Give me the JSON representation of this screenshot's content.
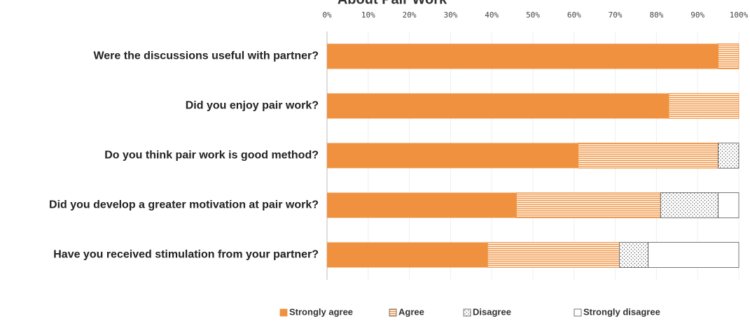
{
  "chart_data": {
    "type": "stacked-bar-horizontal",
    "title": "About Pair Work",
    "categories": [
      "Were the discussions useful with partner?",
      "Did you enjoy pair work?",
      "Do you think pair work is good method?",
      "Did you develop a greater motivation at pair work?",
      "Have you received stimulation from your partner?"
    ],
    "series": [
      {
        "name": "Strongly agree",
        "color": "#f0913f",
        "pattern": "solid",
        "values": [
          95,
          83,
          61,
          46,
          39
        ]
      },
      {
        "name": "Agree",
        "color": "#f0913f",
        "pattern": "horizontal-lines",
        "values": [
          5,
          17,
          34,
          35,
          32
        ]
      },
      {
        "name": "Disagree",
        "color": "#555555",
        "pattern": "dots",
        "values": [
          0,
          0,
          5,
          14,
          7
        ]
      },
      {
        "name": "Strongly disagree",
        "color": "#555555",
        "pattern": "empty",
        "values": [
          0,
          0,
          0,
          5,
          22
        ]
      }
    ],
    "xlim": [
      0,
      100
    ],
    "xticks": [
      {
        "value": 0,
        "label": "0%"
      },
      {
        "value": 10,
        "label": "10%"
      },
      {
        "value": 20,
        "label": "20%"
      },
      {
        "value": 30,
        "label": "30%"
      },
      {
        "value": 40,
        "label": "40%"
      },
      {
        "value": 50,
        "label": "50%"
      },
      {
        "value": 60,
        "label": "60%"
      },
      {
        "value": 70,
        "label": "70%"
      },
      {
        "value": 80,
        "label": "80%"
      },
      {
        "value": 90,
        "label": "90%"
      },
      {
        "value": 100,
        "label": "100%"
      }
    ],
    "grid": true,
    "legend": "bottom"
  }
}
